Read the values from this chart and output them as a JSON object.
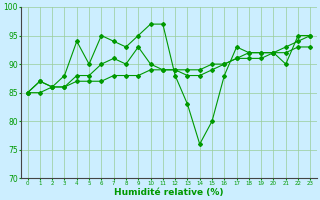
{
  "xlabel": "Humidité relative (%)",
  "ylabel": "",
  "bg_color": "#cceeff",
  "grid_color": "#99cc99",
  "line_color": "#009900",
  "x": [
    0,
    1,
    2,
    3,
    4,
    5,
    6,
    7,
    8,
    9,
    10,
    11,
    12,
    13,
    14,
    15,
    16,
    17,
    18,
    19,
    20,
    21,
    22,
    23
  ],
  "line1": [
    85,
    87,
    86,
    88,
    94,
    90,
    95,
    94,
    93,
    95,
    97,
    97,
    88,
    83,
    76,
    80,
    88,
    93,
    92,
    92,
    92,
    90,
    95,
    95
  ],
  "line2": [
    85,
    87,
    86,
    86,
    88,
    88,
    90,
    91,
    90,
    93,
    90,
    89,
    89,
    88,
    88,
    89,
    90,
    91,
    92,
    92,
    92,
    93,
    94,
    95
  ],
  "line3": [
    85,
    85,
    86,
    86,
    87,
    87,
    87,
    88,
    88,
    88,
    89,
    89,
    89,
    89,
    89,
    90,
    90,
    91,
    91,
    91,
    92,
    92,
    93,
    93
  ],
  "ylim": [
    70,
    100
  ],
  "xlim": [
    -0.5,
    23.5
  ],
  "yticks": [
    70,
    75,
    80,
    85,
    90,
    95,
    100
  ],
  "xticks": [
    0,
    1,
    2,
    3,
    4,
    5,
    6,
    7,
    8,
    9,
    10,
    11,
    12,
    13,
    14,
    15,
    16,
    17,
    18,
    19,
    20,
    21,
    22,
    23
  ]
}
